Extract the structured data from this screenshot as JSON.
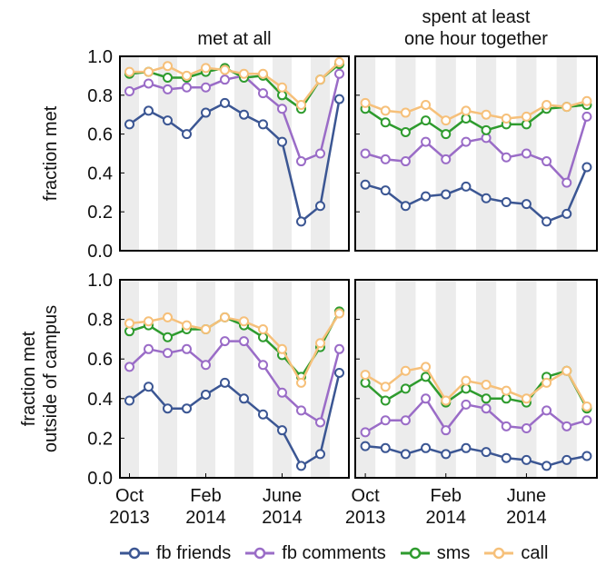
{
  "colors": {
    "fb_friends": "#3b5693",
    "fb_comments": "#9a6cc7",
    "sms": "#2e9b2e",
    "call": "#f6c07a",
    "stripe": "#ececec"
  },
  "chart_data": [
    {
      "type": "line",
      "title": "met at all",
      "ylabel": "fraction met",
      "ylim": [
        0,
        1
      ],
      "yticks": [
        "0.0",
        "0.2",
        "0.4",
        "0.6",
        "0.8",
        "1.0"
      ],
      "x": [
        0,
        1,
        2,
        3,
        4,
        5,
        6,
        7,
        8,
        9,
        10,
        11
      ],
      "series": [
        {
          "name": "fb friends",
          "color_key": "fb_friends",
          "values": [
            0.65,
            0.72,
            0.67,
            0.6,
            0.71,
            0.76,
            0.7,
            0.65,
            0.56,
            0.15,
            0.23,
            0.78
          ]
        },
        {
          "name": "fb comments",
          "color_key": "fb_comments",
          "values": [
            0.82,
            0.86,
            0.83,
            0.84,
            0.84,
            0.88,
            0.9,
            0.81,
            0.73,
            0.46,
            0.5,
            0.91
          ]
        },
        {
          "name": "sms",
          "color_key": "sms",
          "values": [
            0.91,
            0.92,
            0.89,
            0.89,
            0.92,
            0.94,
            0.89,
            0.9,
            0.8,
            0.73,
            0.88,
            0.96
          ]
        },
        {
          "name": "call",
          "color_key": "call",
          "values": [
            0.92,
            0.92,
            0.95,
            0.9,
            0.94,
            0.93,
            0.91,
            0.91,
            0.84,
            0.75,
            0.88,
            0.97
          ]
        }
      ]
    },
    {
      "type": "line",
      "title": "spent at least\none hour together",
      "ylim": [
        0,
        1
      ],
      "x": [
        0,
        1,
        2,
        3,
        4,
        5,
        6,
        7,
        8,
        9,
        10,
        11
      ],
      "series": [
        {
          "name": "fb friends",
          "color_key": "fb_friends",
          "values": [
            0.34,
            0.31,
            0.23,
            0.28,
            0.29,
            0.33,
            0.27,
            0.25,
            0.24,
            0.15,
            0.19,
            0.43
          ]
        },
        {
          "name": "fb comments",
          "color_key": "fb_comments",
          "values": [
            0.5,
            0.47,
            0.46,
            0.56,
            0.47,
            0.56,
            0.58,
            0.48,
            0.5,
            0.46,
            0.35,
            0.69
          ]
        },
        {
          "name": "sms",
          "color_key": "sms",
          "values": [
            0.73,
            0.66,
            0.61,
            0.67,
            0.6,
            0.68,
            0.62,
            0.65,
            0.65,
            0.73,
            0.74,
            0.75
          ]
        },
        {
          "name": "call",
          "color_key": "call",
          "values": [
            0.76,
            0.72,
            0.71,
            0.75,
            0.67,
            0.72,
            0.7,
            0.68,
            0.69,
            0.75,
            0.74,
            0.77
          ]
        }
      ]
    },
    {
      "type": "line",
      "ylabel": "fraction met\noutside of campus",
      "ylim": [
        0,
        1
      ],
      "yticks": [
        "0.0",
        "0.2",
        "0.4",
        "0.6",
        "0.8",
        "1.0"
      ],
      "x": [
        0,
        1,
        2,
        3,
        4,
        5,
        6,
        7,
        8,
        9,
        10,
        11
      ],
      "xticks": [
        {
          "at": 0,
          "label": "Oct\n2013"
        },
        {
          "at": 4,
          "label": "Feb\n2014"
        },
        {
          "at": 8,
          "label": "June\n2014"
        }
      ],
      "series": [
        {
          "name": "fb friends",
          "color_key": "fb_friends",
          "values": [
            0.39,
            0.46,
            0.35,
            0.35,
            0.42,
            0.48,
            0.4,
            0.32,
            0.24,
            0.06,
            0.12,
            0.53
          ]
        },
        {
          "name": "fb comments",
          "color_key": "fb_comments",
          "values": [
            0.56,
            0.65,
            0.63,
            0.65,
            0.57,
            0.69,
            0.69,
            0.57,
            0.43,
            0.34,
            0.28,
            0.65
          ]
        },
        {
          "name": "sms",
          "color_key": "sms",
          "values": [
            0.74,
            0.77,
            0.71,
            0.75,
            0.75,
            0.81,
            0.77,
            0.71,
            0.62,
            0.51,
            0.66,
            0.84
          ]
        },
        {
          "name": "call",
          "color_key": "call",
          "values": [
            0.78,
            0.79,
            0.81,
            0.77,
            0.75,
            0.81,
            0.79,
            0.75,
            0.65,
            0.48,
            0.68,
            0.83
          ]
        }
      ]
    },
    {
      "type": "line",
      "ylim": [
        0,
        1
      ],
      "x": [
        0,
        1,
        2,
        3,
        4,
        5,
        6,
        7,
        8,
        9,
        10,
        11
      ],
      "xticks": [
        {
          "at": 0,
          "label": "Oct\n2013"
        },
        {
          "at": 4,
          "label": "Feb\n2014"
        },
        {
          "at": 8,
          "label": "June\n2014"
        }
      ],
      "series": [
        {
          "name": "fb friends",
          "color_key": "fb_friends",
          "values": [
            0.16,
            0.15,
            0.12,
            0.15,
            0.12,
            0.15,
            0.13,
            0.1,
            0.09,
            0.06,
            0.09,
            0.11
          ]
        },
        {
          "name": "fb comments",
          "color_key": "fb_comments",
          "values": [
            0.23,
            0.29,
            0.29,
            0.4,
            0.24,
            0.37,
            0.35,
            0.26,
            0.25,
            0.34,
            0.26,
            0.29
          ]
        },
        {
          "name": "sms",
          "color_key": "sms",
          "values": [
            0.48,
            0.39,
            0.45,
            0.51,
            0.38,
            0.45,
            0.4,
            0.4,
            0.38,
            0.51,
            0.54,
            0.35
          ]
        },
        {
          "name": "call",
          "color_key": "call",
          "values": [
            0.52,
            0.46,
            0.54,
            0.56,
            0.39,
            0.49,
            0.47,
            0.44,
            0.4,
            0.48,
            0.54,
            0.36
          ]
        }
      ]
    }
  ],
  "legend": {
    "items": [
      {
        "label": "fb friends",
        "color_key": "fb_friends"
      },
      {
        "label": "fb comments",
        "color_key": "fb_comments"
      },
      {
        "label": "sms",
        "color_key": "sms"
      },
      {
        "label": "call",
        "color_key": "call"
      }
    ]
  }
}
